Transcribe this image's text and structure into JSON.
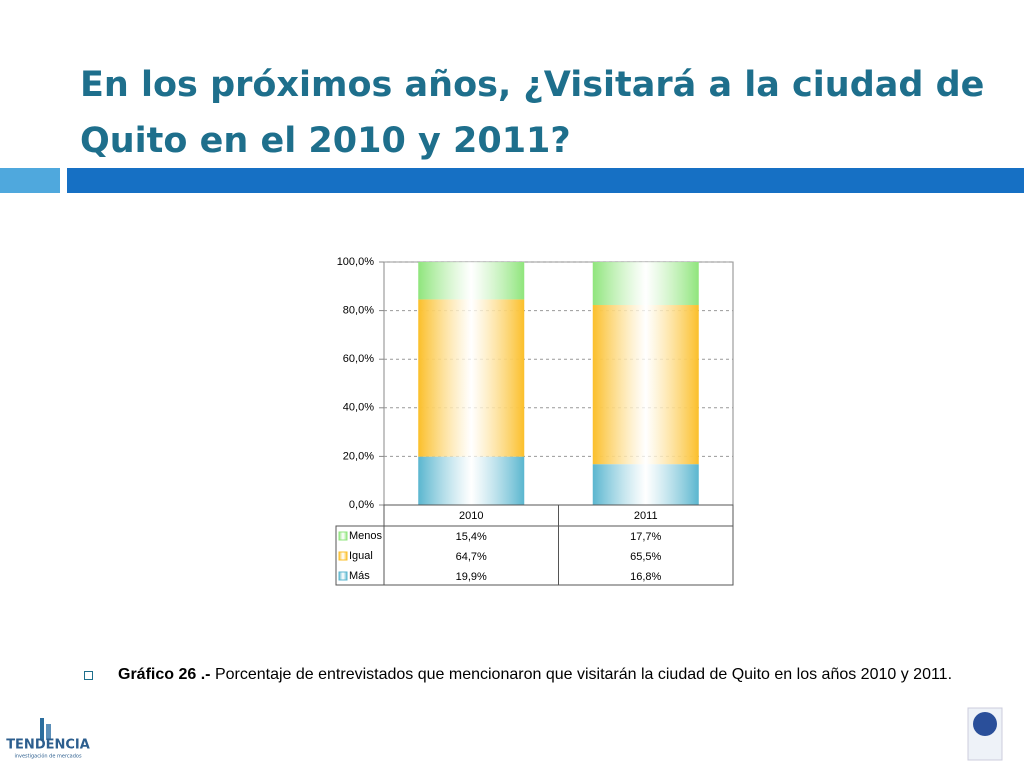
{
  "title_line1": "En los próximos años, ¿Visitará a la ciudad de",
  "title_line2": "Quito en el 2010 y 2011?",
  "chart_data": {
    "type": "stacked_bar",
    "categories": [
      "2010",
      "2011"
    ],
    "series": [
      {
        "name": "Menos",
        "color": "#8fe57c",
        "values": [
          15.4,
          17.7
        ],
        "value_labels": [
          "15,4%",
          "17,7%"
        ]
      },
      {
        "name": "Igual",
        "color": "#fbbf2a",
        "values": [
          64.7,
          65.5
        ],
        "value_labels": [
          "64,7%",
          "65,5%"
        ]
      },
      {
        "name": "Más",
        "color": "#5ab6cf",
        "values": [
          19.9,
          16.8
        ],
        "value_labels": [
          "19,9%",
          "16,8%"
        ]
      }
    ],
    "ylim": [
      0,
      100
    ],
    "yticks": [
      {
        "value": 0,
        "label": "0,0%"
      },
      {
        "value": 20,
        "label": "20,0%"
      },
      {
        "value": 40,
        "label": "40,0%"
      },
      {
        "value": 60,
        "label": "60,0%"
      },
      {
        "value": 80,
        "label": "80,0%"
      },
      {
        "value": 100,
        "label": "100,0%"
      }
    ],
    "grid": true
  },
  "caption": {
    "label": "Gráfico 26 .-",
    "text": "Porcentaje de entrevistados que mencionaron que visitarán la ciudad de Quito en los años 2010 y 2011."
  },
  "logo": {
    "name": "TENDENCIA",
    "tagline": "investigación de mercados"
  }
}
